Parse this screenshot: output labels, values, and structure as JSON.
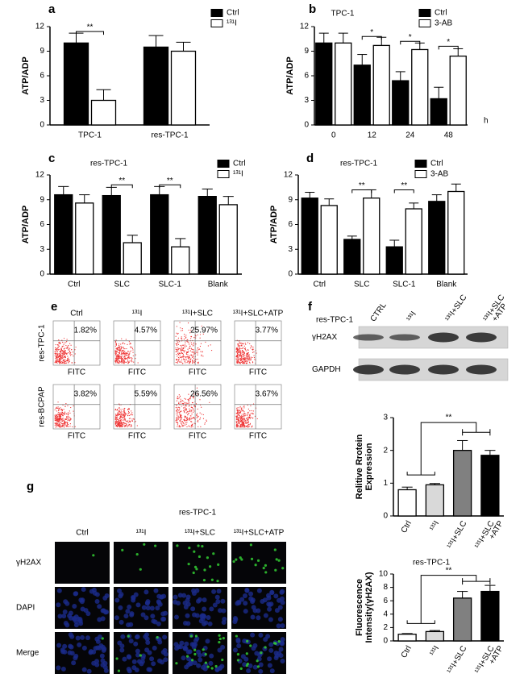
{
  "chart_data": [
    {
      "type": "bar",
      "label": "a",
      "ylabel": "ATP/ADP",
      "categories": [
        "TPC-1",
        "res-TPC-1"
      ],
      "series": [
        {
          "name": "Ctrl",
          "color": "#000000",
          "values": [
            10,
            9.5
          ],
          "errors": [
            1.2,
            1.4
          ]
        },
        {
          "name": "¹³¹I",
          "color": "#ffffff",
          "values": [
            3,
            9
          ],
          "errors": [
            1.3,
            1.1
          ]
        }
      ],
      "ylim": [
        0,
        12
      ],
      "yticks": [
        0,
        3,
        6,
        9,
        12
      ],
      "annotations": [
        "**"
      ]
    },
    {
      "type": "bar",
      "label": "b",
      "title": "TPC-1",
      "ylabel": "ATP/ADP",
      "x_label": "h",
      "categories": [
        "0",
        "12",
        "24",
        "48"
      ],
      "series": [
        {
          "name": "Ctrl",
          "color": "#000000",
          "values": [
            10,
            7.3,
            5.4,
            3.2
          ],
          "errors": [
            1.2,
            1.3,
            1.1,
            1.4
          ]
        },
        {
          "name": "3-AB",
          "color": "#ffffff",
          "values": [
            10,
            9.7,
            9.2,
            8.4
          ],
          "errors": [
            1.2,
            1.0,
            0.8,
            0.9
          ]
        }
      ],
      "ylim": [
        0,
        12
      ],
      "yticks": [
        0,
        3,
        6,
        9,
        12
      ],
      "annotations": [
        "*",
        "*",
        "*"
      ]
    },
    {
      "type": "bar",
      "label": "c",
      "title": "res-TPC-1",
      "ylabel": "ATP/ADP",
      "categories": [
        "Ctrl",
        "SLC",
        "SLC-1",
        "Blank"
      ],
      "series": [
        {
          "name": "Ctrl",
          "color": "#000000",
          "values": [
            9.6,
            9.5,
            9.6,
            9.4
          ],
          "errors": [
            1.0,
            1.0,
            1.0,
            0.9
          ]
        },
        {
          "name": "¹³¹I",
          "color": "#ffffff",
          "values": [
            8.6,
            3.8,
            3.3,
            8.4
          ],
          "errors": [
            1.0,
            0.9,
            1.0,
            1.0
          ]
        }
      ],
      "ylim": [
        0,
        12
      ],
      "yticks": [
        0,
        3,
        6,
        9,
        12
      ],
      "annotations": [
        "**",
        "**"
      ]
    },
    {
      "type": "bar",
      "label": "d",
      "title": "res-TPC-1",
      "ylabel": "ATP/ADP",
      "categories": [
        "Ctrl",
        "SLC",
        "SLC-1",
        "Blank"
      ],
      "series": [
        {
          "name": "Ctrl",
          "color": "#000000",
          "values": [
            9.2,
            4.2,
            3.3,
            8.8
          ],
          "errors": [
            0.7,
            0.4,
            0.8,
            0.8
          ]
        },
        {
          "name": "3-AB",
          "color": "#ffffff",
          "values": [
            8.3,
            9.2,
            7.9,
            10
          ],
          "errors": [
            0.8,
            1.0,
            0.7,
            0.9
          ]
        }
      ],
      "ylim": [
        0,
        12
      ],
      "yticks": [
        0,
        3,
        6,
        9,
        12
      ],
      "annotations": [
        "**",
        "**"
      ]
    },
    {
      "type": "bar",
      "ylabel": [
        "Relitive Rrotein",
        "Expression"
      ],
      "categories": [
        "Ctrl",
        "¹³¹I",
        "¹³¹I+SLC",
        [
          "¹³¹I+SLC",
          "+ATP"
        ]
      ],
      "values": [
        0.8,
        0.95,
        2.0,
        1.85
      ],
      "errors": [
        0.08,
        0.04,
        0.3,
        0.15
      ],
      "colors": [
        "#ffffff",
        "#d9d9d9",
        "#808080",
        "#000000"
      ],
      "ylim": [
        0,
        3
      ],
      "yticks": [
        0,
        1,
        2,
        3
      ],
      "annotations": [
        "**"
      ]
    },
    {
      "type": "bar",
      "title": "res-TPC-1",
      "ylabel": [
        "Fluorescence",
        "Intensity(γH2AX)"
      ],
      "categories": [
        "Ctrl",
        "¹³¹I",
        "¹³¹I+SLC",
        [
          "¹³¹I+SLC",
          "+ATP"
        ]
      ],
      "values": [
        1,
        1.4,
        6.4,
        7.4
      ],
      "errors": [
        0.1,
        0.15,
        1.0,
        0.9
      ],
      "colors": [
        "#ffffff",
        "#d9d9d9",
        "#808080",
        "#000000"
      ],
      "ylim": [
        0,
        10
      ],
      "yticks": [
        0,
        2,
        4,
        6,
        8,
        10
      ],
      "annotations": [
        "**"
      ]
    }
  ],
  "flow": {
    "label": "e",
    "columns": [
      "Ctrl",
      "¹³¹I",
      "¹³¹I+SLC",
      "¹³¹I+SLC+ATP"
    ],
    "axis_label": "FITC",
    "rows": [
      {
        "name": "res-TPC-1",
        "percentages": [
          "1.82%",
          "4.57%",
          "25.97%",
          "3.77%"
        ]
      },
      {
        "name": "res-BCPAP",
        "percentages": [
          "3.82%",
          "5.59%",
          "26.56%",
          "3.67%"
        ]
      }
    ]
  },
  "western": {
    "label": "f",
    "cell_line": "res-TPC-1",
    "lanes": [
      [
        "CTRL"
      ],
      [
        "¹³¹I"
      ],
      [
        "¹³¹I+SLC"
      ],
      [
        "¹³¹I+SLC",
        "+ATP"
      ]
    ],
    "proteins": [
      "γH2AX",
      "GAPDH"
    ]
  },
  "immunofluorescence": {
    "label": "g",
    "title": "res-TPC-1",
    "columns": [
      "Ctrl",
      "¹³¹I",
      "¹³¹I+SLC",
      "¹³¹I+SLC+ATP"
    ],
    "rows": [
      "γH2AX",
      "DAPI",
      "Merge"
    ]
  }
}
